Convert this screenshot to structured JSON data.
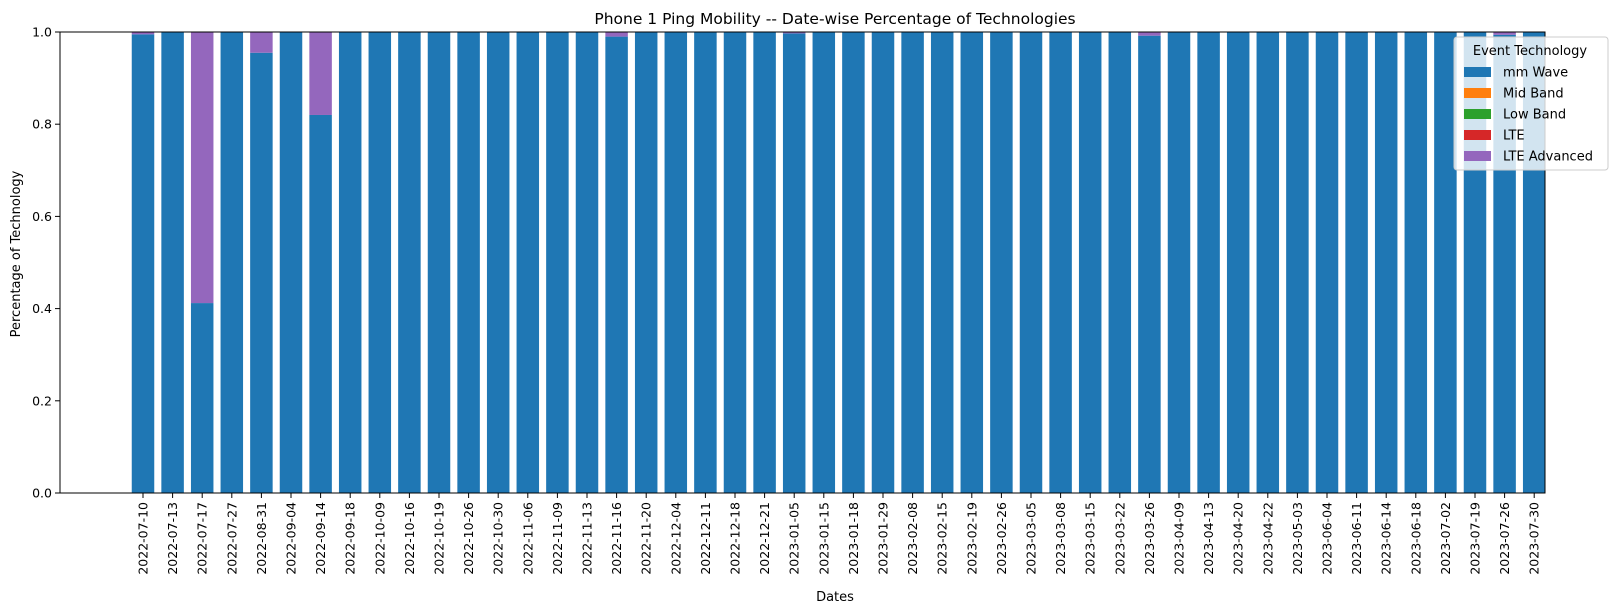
{
  "chart_data": {
    "type": "bar",
    "stacked": true,
    "title": "Phone 1 Ping Mobility -- Date-wise Percentage of Technologies",
    "xlabel": "Dates",
    "ylabel": "Percentage of Technology",
    "ylim": [
      0,
      1
    ],
    "yticks": [
      "0.0",
      "0.2",
      "0.4",
      "0.6",
      "0.8",
      "1.0"
    ],
    "grid": false,
    "legend": {
      "title": "Event Technology",
      "placement": "top-right"
    },
    "categories": [
      "2022-07-10",
      "2022-07-13",
      "2022-07-17",
      "2022-07-27",
      "2022-08-31",
      "2022-09-04",
      "2022-09-14",
      "2022-09-18",
      "2022-10-09",
      "2022-10-16",
      "2022-10-19",
      "2022-10-26",
      "2022-10-30",
      "2022-11-06",
      "2022-11-09",
      "2022-11-13",
      "2022-11-16",
      "2022-11-20",
      "2022-12-04",
      "2022-12-11",
      "2022-12-18",
      "2022-12-21",
      "2023-01-05",
      "2023-01-15",
      "2023-01-18",
      "2023-01-29",
      "2023-02-08",
      "2023-02-15",
      "2023-02-19",
      "2023-02-26",
      "2023-03-05",
      "2023-03-08",
      "2023-03-15",
      "2023-03-22",
      "2023-03-26",
      "2023-04-09",
      "2023-04-13",
      "2023-04-20",
      "2023-04-22",
      "2023-05-03",
      "2023-06-04",
      "2023-06-11",
      "2023-06-14",
      "2023-06-18",
      "2023-07-02",
      "2023-07-19",
      "2023-07-26",
      "2023-07-30"
    ],
    "series": [
      {
        "name": "mm Wave",
        "color": "#1f77b4",
        "values": [
          0.995,
          1,
          0.412,
          1,
          0.955,
          1,
          0.82,
          1,
          1,
          1,
          1,
          1,
          1,
          1,
          1,
          1,
          0.99,
          1,
          1,
          1,
          1,
          1,
          0.997,
          1,
          1,
          1,
          1,
          1,
          1,
          1,
          1,
          1,
          1,
          1,
          0.992,
          1,
          1,
          1,
          1,
          1,
          1,
          1,
          1,
          1,
          1,
          1,
          0.994,
          1
        ]
      },
      {
        "name": "Mid Band",
        "color": "#ff7f0e",
        "values": [
          0,
          0,
          0,
          0,
          0,
          0,
          0,
          0,
          0,
          0,
          0,
          0,
          0,
          0,
          0,
          0,
          0,
          0,
          0,
          0,
          0,
          0,
          0,
          0,
          0,
          0,
          0,
          0,
          0,
          0,
          0,
          0,
          0,
          0,
          0,
          0,
          0,
          0,
          0,
          0,
          0,
          0,
          0,
          0,
          0,
          0,
          0,
          0
        ]
      },
      {
        "name": "Low Band",
        "color": "#2ca02c",
        "values": [
          0,
          0,
          0,
          0,
          0,
          0,
          0,
          0,
          0,
          0,
          0,
          0,
          0,
          0,
          0,
          0,
          0,
          0,
          0,
          0,
          0,
          0,
          0,
          0,
          0,
          0,
          0,
          0,
          0,
          0,
          0,
          0,
          0,
          0,
          0,
          0,
          0,
          0,
          0,
          0,
          0,
          0,
          0,
          0,
          0,
          0,
          0,
          0
        ]
      },
      {
        "name": "LTE",
        "color": "#d62728",
        "values": [
          0,
          0,
          0,
          0,
          0,
          0,
          0,
          0,
          0,
          0,
          0,
          0,
          0,
          0,
          0,
          0,
          0,
          0,
          0,
          0,
          0,
          0,
          0,
          0,
          0,
          0,
          0,
          0,
          0,
          0,
          0,
          0,
          0,
          0,
          0,
          0,
          0,
          0,
          0,
          0,
          0,
          0,
          0,
          0,
          0,
          0,
          0,
          0
        ]
      },
      {
        "name": "LTE Advanced",
        "color": "#9467bd",
        "values": [
          0.005,
          0,
          0.588,
          0,
          0.045,
          0,
          0.18,
          0,
          0,
          0,
          0,
          0,
          0,
          0,
          0,
          0,
          0.01,
          0,
          0,
          0,
          0,
          0,
          0.003,
          0,
          0,
          0,
          0,
          0,
          0,
          0,
          0,
          0,
          0,
          0,
          0.008,
          0,
          0,
          0,
          0,
          0,
          0,
          0,
          0,
          0,
          0,
          0,
          0.006,
          0
        ]
      }
    ]
  }
}
